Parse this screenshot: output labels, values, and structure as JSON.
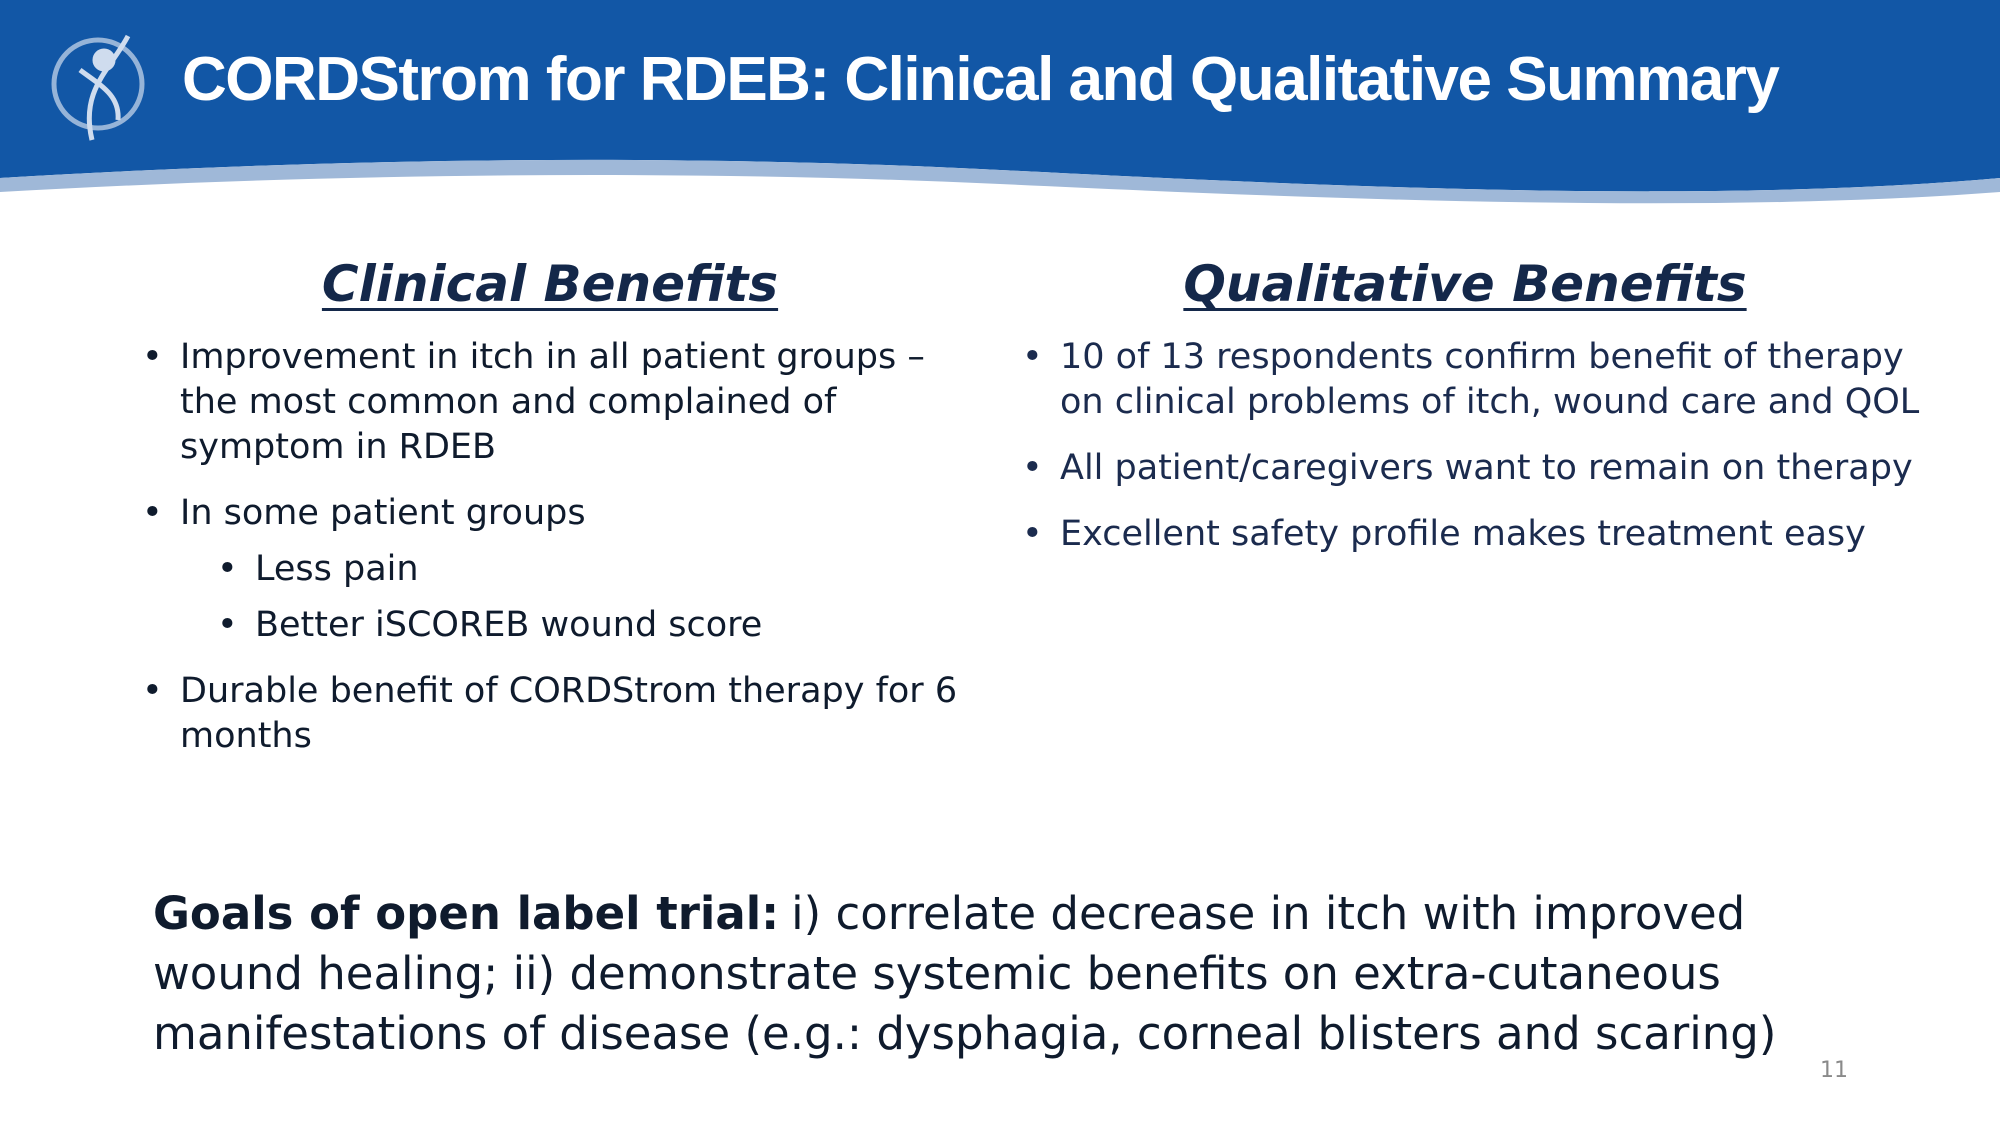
{
  "header": {
    "title": "CORDStrom for RDEB: Clinical and Qualitative Summary"
  },
  "columns": [
    {
      "heading": "Clinical Benefits",
      "items": [
        {
          "text": "Improvement in itch in all patient groups – the most common and complained of symptom in RDEB"
        },
        {
          "text": "In some patient groups",
          "sub": [
            "Less pain",
            "Better iSCOREB wound score"
          ]
        },
        {
          "text": "Durable benefit of CORDStrom therapy for 6 months"
        }
      ]
    },
    {
      "heading": "Qualitative Benefits",
      "items": [
        {
          "text": "10 of 13 respondents confirm benefit of therapy on clinical problems of itch, wound care and QOL"
        },
        {
          "text": "All patient/caregivers want to remain on therapy"
        },
        {
          "text": "Excellent safety profile makes treatment easy"
        }
      ]
    }
  ],
  "goals": {
    "label": "Goals of open label trial:",
    "text": "i) correlate decrease in itch with improved wound healing; ii) demonstrate systemic benefits on extra-cutaneous manifestations of disease (e.g.: dysphagia, corneal blisters and scaring)"
  },
  "page_number": "11"
}
